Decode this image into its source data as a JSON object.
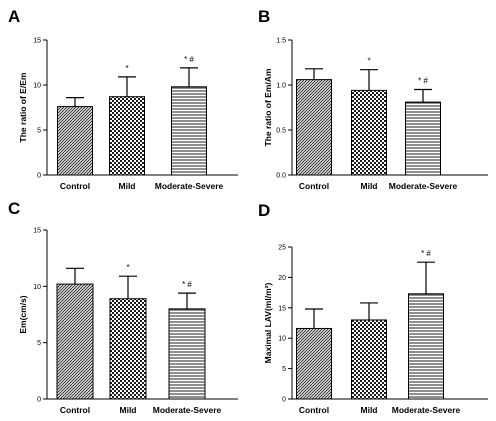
{
  "chart_data": [
    {
      "panel": "A",
      "type": "bar",
      "categories": [
        "Control",
        "Mild",
        "Moderate-Severe"
      ],
      "values": [
        7.6,
        8.7,
        9.8
      ],
      "errors": [
        1.0,
        2.2,
        2.1
      ],
      "patterns": [
        "dense-hatch",
        "check",
        "hstripe"
      ],
      "annotations": [
        "",
        "*",
        "* #"
      ],
      "ylabel": "The ratio of E/Em",
      "ylim": [
        0,
        15
      ],
      "yticks": [
        0,
        5,
        10,
        15
      ]
    },
    {
      "panel": "B",
      "type": "bar",
      "categories": [
        "Control",
        "Mild",
        "Moderate-Severe"
      ],
      "values": [
        1.06,
        0.94,
        0.81
      ],
      "errors": [
        0.12,
        0.23,
        0.14
      ],
      "patterns": [
        "dense-hatch",
        "check",
        "hstripe"
      ],
      "annotations": [
        "",
        "*",
        "* #"
      ],
      "ylabel": "The ratio of Em/Am",
      "ylim": [
        0,
        1.5
      ],
      "yticks": [
        0.0,
        0.5,
        1.0,
        1.5
      ],
      "ytick_labels": [
        "0.0",
        "0.5",
        "1.0",
        "1.5"
      ]
    },
    {
      "panel": "C",
      "type": "bar",
      "categories": [
        "Control",
        "Mild",
        "Moderate-Severe"
      ],
      "values": [
        10.2,
        8.9,
        8.0
      ],
      "errors": [
        1.4,
        2.0,
        1.4
      ],
      "patterns": [
        "dense-hatch",
        "check",
        "hstripe"
      ],
      "annotations": [
        "",
        "*",
        "* #"
      ],
      "ylabel": "Em(cm/s)",
      "ylim": [
        0,
        15
      ],
      "yticks": [
        0,
        5,
        10,
        15
      ]
    },
    {
      "panel": "D",
      "type": "bar",
      "categories": [
        "Control",
        "Mild",
        "Moderate-Severe"
      ],
      "values": [
        11.6,
        13.0,
        17.3
      ],
      "errors": [
        3.2,
        2.8,
        5.2
      ],
      "patterns": [
        "dense-hatch",
        "check",
        "hstripe"
      ],
      "annotations": [
        "",
        "",
        "* #"
      ],
      "ylabel": "Maximal LAV(ml/m²)",
      "ylim": [
        0,
        25
      ],
      "yticks": [
        0,
        5,
        10,
        15,
        20,
        25
      ]
    }
  ]
}
